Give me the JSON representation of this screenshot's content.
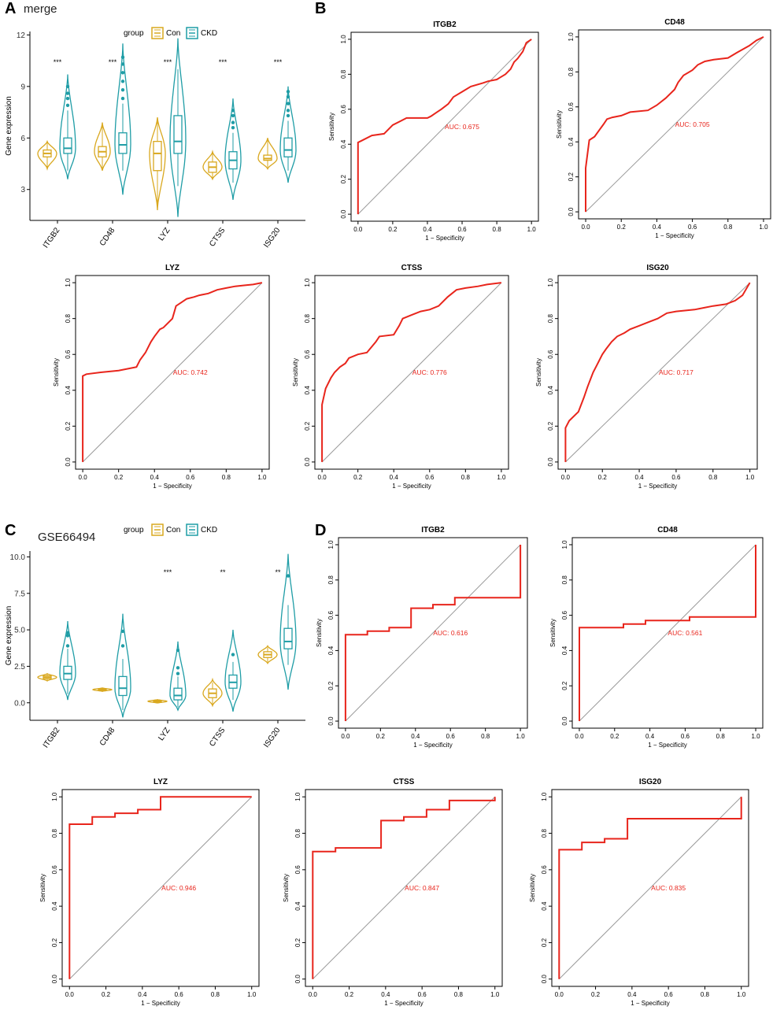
{
  "colors": {
    "con": "#d9a81f",
    "ckd": "#1f9da6",
    "roc_line": "#e8251c",
    "diagonal": "#9a9a9a",
    "auc_text": "#e8251c"
  },
  "chart_data": [
    {
      "panel": "A",
      "type": "violin",
      "title": "merge",
      "xlabel": "",
      "ylabel": "Gene expression",
      "ylim": [
        1.2,
        12.2
      ],
      "yticks": [
        3,
        6,
        9,
        12
      ],
      "yticklabels": [
        "3",
        "6",
        "9",
        "12"
      ],
      "categories": [
        "ITGB2",
        "CD48",
        "LYZ",
        "CTSS",
        "ISG20"
      ],
      "legend": {
        "title": "group",
        "entries": [
          "Con",
          "CKD"
        ]
      },
      "significance": [
        "***",
        "***",
        "***",
        "***",
        "***"
      ],
      "series": [
        {
          "name": "Con",
          "groups": [
            {
              "median": 5.1,
              "q1": 4.9,
              "q3": 5.3,
              "min": 4.2,
              "max": 5.8,
              "violin": [
                4.2,
                5.8
              ],
              "outliers": []
            },
            {
              "median": 5.2,
              "q1": 4.9,
              "q3": 5.5,
              "min": 4.2,
              "max": 6.9,
              "violin": [
                4.1,
                6.9
              ],
              "outliers": []
            },
            {
              "median": 5.1,
              "q1": 4.1,
              "q3": 5.8,
              "min": 1.8,
              "max": 7.2,
              "violin": [
                1.8,
                7.2
              ],
              "outliers": []
            },
            {
              "median": 4.3,
              "q1": 4.0,
              "q3": 4.6,
              "min": 3.6,
              "max": 5.2,
              "violin": [
                3.6,
                5.2
              ],
              "outliers": []
            },
            {
              "median": 4.8,
              "q1": 4.7,
              "q3": 5.0,
              "min": 4.3,
              "max": 6.0,
              "violin": [
                4.2,
                6.0
              ],
              "outliers": []
            }
          ]
        },
        {
          "name": "CKD",
          "groups": [
            {
              "median": 5.4,
              "q1": 5.1,
              "q3": 6.0,
              "min": 4.1,
              "max": 7.6,
              "violin": [
                3.6,
                9.7
              ],
              "outliers": [
                7.9,
                8.3,
                8.6,
                9.0
              ]
            },
            {
              "median": 5.6,
              "q1": 5.1,
              "q3": 6.3,
              "min": 4.1,
              "max": 8.0,
              "violin": [
                2.7,
                11.5
              ],
              "outliers": [
                8.3,
                8.8,
                9.3,
                9.8,
                10.3,
                10.7
              ]
            },
            {
              "median": 5.8,
              "q1": 5.1,
              "q3": 7.3,
              "min": 3.2,
              "max": 10.0,
              "violin": [
                1.4,
                11.8
              ],
              "outliers": []
            },
            {
              "median": 4.7,
              "q1": 4.2,
              "q3": 5.2,
              "min": 3.4,
              "max": 6.3,
              "violin": [
                2.4,
                8.3
              ],
              "outliers": [
                6.6,
                6.9,
                7.3,
                7.6
              ]
            },
            {
              "median": 5.3,
              "q1": 4.9,
              "q3": 6.0,
              "min": 4.1,
              "max": 7.0,
              "violin": [
                3.4,
                9.0
              ],
              "outliers": [
                7.3,
                7.6,
                8.0,
                8.4,
                8.7
              ]
            }
          ]
        }
      ]
    },
    {
      "panel": "C",
      "type": "violin",
      "title": "GSE66494",
      "xlabel": "",
      "ylabel": "Gene expression",
      "ylim": [
        -1.2,
        10.4
      ],
      "yticks": [
        0,
        2.5,
        5,
        7.5,
        10
      ],
      "yticklabels": [
        "0.0",
        "2.5",
        "5.0",
        "7.5",
        "10.0"
      ],
      "categories": [
        "ITGB2",
        "CD48",
        "LYZ",
        "CTSS",
        "ISG20"
      ],
      "legend": {
        "title": "group",
        "entries": [
          "Con",
          "CKD"
        ]
      },
      "significance": [
        "",
        "",
        "***",
        "**",
        "**"
      ],
      "series": [
        {
          "name": "Con",
          "groups": [
            {
              "median": 1.75,
              "q1": 1.65,
              "q3": 1.85,
              "min": 1.5,
              "max": 2.0,
              "violin": [
                1.5,
                2.0
              ],
              "outliers": []
            },
            {
              "median": 0.9,
              "q1": 0.85,
              "q3": 0.95,
              "min": 0.8,
              "max": 1.0,
              "violin": [
                0.78,
                1.02
              ],
              "outliers": []
            },
            {
              "median": 0.1,
              "q1": 0.05,
              "q3": 0.15,
              "min": 0.0,
              "max": 0.2,
              "violin": [
                -0.02,
                0.22
              ],
              "outliers": []
            },
            {
              "median": 0.65,
              "q1": 0.35,
              "q3": 0.95,
              "min": -0.1,
              "max": 1.4,
              "violin": [
                -0.2,
                1.6
              ],
              "outliers": []
            },
            {
              "median": 3.3,
              "q1": 3.1,
              "q3": 3.5,
              "min": 2.8,
              "max": 3.8,
              "violin": [
                2.7,
                3.9
              ],
              "outliers": []
            }
          ]
        },
        {
          "name": "CKD",
          "groups": [
            {
              "median": 2.0,
              "q1": 1.6,
              "q3": 2.5,
              "min": 0.6,
              "max": 3.7,
              "violin": [
                0.2,
                5.6
              ],
              "outliers": [
                4.6,
                4.8,
                3.9
              ]
            },
            {
              "median": 1.0,
              "q1": 0.5,
              "q3": 1.8,
              "min": -0.5,
              "max": 3.0,
              "violin": [
                -1.0,
                6.1
              ],
              "outliers": [
                3.9,
                4.9
              ]
            },
            {
              "median": 0.5,
              "q1": 0.2,
              "q3": 1.0,
              "min": -0.3,
              "max": 1.8,
              "violin": [
                -0.5,
                4.2
              ],
              "outliers": [
                2.0,
                2.4,
                3.6
              ]
            },
            {
              "median": 1.4,
              "q1": 1.0,
              "q3": 1.9,
              "min": 0.2,
              "max": 2.8,
              "violin": [
                -0.6,
                5.0
              ],
              "outliers": [
                3.3
              ]
            },
            {
              "median": 4.2,
              "q1": 3.7,
              "q3": 5.1,
              "min": 2.6,
              "max": 6.7,
              "violin": [
                0.9,
                10.2
              ],
              "outliers": [
                8.7
              ]
            }
          ]
        }
      ]
    },
    {
      "panel": "B",
      "type": "line",
      "title": "ITGB2",
      "xlabel": "1 − Specificity",
      "ylabel": "Sensitivity",
      "xlim": [
        0,
        1
      ],
      "ylim": [
        0,
        1
      ],
      "ticks": [
        "0.0",
        "0.2",
        "0.4",
        "0.6",
        "0.8",
        "1.0"
      ],
      "auc_label": "AUC: 0.675",
      "x": [
        0,
        0,
        0.02,
        0.08,
        0.15,
        0.2,
        0.28,
        0.4,
        0.42,
        0.45,
        0.48,
        0.52,
        0.55,
        0.6,
        0.65,
        0.72,
        0.75,
        0.8,
        0.85,
        0.88,
        0.9,
        0.92,
        0.95,
        0.97,
        1.0
      ],
      "y": [
        0,
        0.41,
        0.42,
        0.45,
        0.46,
        0.51,
        0.55,
        0.55,
        0.56,
        0.58,
        0.6,
        0.63,
        0.67,
        0.7,
        0.73,
        0.75,
        0.76,
        0.77,
        0.8,
        0.83,
        0.87,
        0.89,
        0.93,
        0.98,
        1.0
      ]
    },
    {
      "panel": "B",
      "type": "line",
      "title": "CD48",
      "xlabel": "1 − Specificity",
      "ylabel": "Sensitivity",
      "xlim": [
        0,
        1
      ],
      "ylim": [
        0,
        1
      ],
      "ticks": [
        "0.0",
        "0.2",
        "0.4",
        "0.6",
        "0.8",
        "1.0"
      ],
      "auc_label": "AUC: 0.705",
      "x": [
        0,
        0,
        0.02,
        0.05,
        0.1,
        0.12,
        0.15,
        0.2,
        0.25,
        0.35,
        0.4,
        0.45,
        0.5,
        0.52,
        0.55,
        0.6,
        0.63,
        0.67,
        0.72,
        0.8,
        0.85,
        0.92,
        0.96,
        1.0
      ],
      "y": [
        0,
        0.25,
        0.41,
        0.43,
        0.5,
        0.53,
        0.54,
        0.55,
        0.57,
        0.58,
        0.61,
        0.65,
        0.7,
        0.74,
        0.78,
        0.81,
        0.84,
        0.86,
        0.87,
        0.88,
        0.91,
        0.95,
        0.98,
        1.0
      ]
    },
    {
      "panel": "B",
      "type": "line",
      "title": "LYZ",
      "xlabel": "1 − Specificity",
      "ylabel": "Sensitivity",
      "xlim": [
        0,
        1
      ],
      "ylim": [
        0,
        1
      ],
      "ticks": [
        "0.0",
        "0.2",
        "0.4",
        "0.6",
        "0.8",
        "1.0"
      ],
      "auc_label": "AUC: 0.742",
      "x": [
        0,
        0,
        0.02,
        0.1,
        0.2,
        0.3,
        0.32,
        0.35,
        0.38,
        0.4,
        0.43,
        0.45,
        0.5,
        0.52,
        0.55,
        0.58,
        0.62,
        0.65,
        0.7,
        0.75,
        0.8,
        0.85,
        0.9,
        0.95,
        1.0
      ],
      "y": [
        0,
        0.48,
        0.49,
        0.5,
        0.51,
        0.53,
        0.57,
        0.61,
        0.67,
        0.7,
        0.74,
        0.75,
        0.8,
        0.87,
        0.89,
        0.91,
        0.92,
        0.93,
        0.94,
        0.96,
        0.97,
        0.98,
        0.985,
        0.99,
        1.0
      ]
    },
    {
      "panel": "B",
      "type": "line",
      "title": "CTSS",
      "xlabel": "1 − Specificity",
      "ylabel": "Sensitivity",
      "xlim": [
        0,
        1
      ],
      "ylim": [
        0,
        1
      ],
      "ticks": [
        "0.0",
        "0.2",
        "0.4",
        "0.6",
        "0.8",
        "1.0"
      ],
      "auc_label": "AUC: 0.776",
      "x": [
        0,
        0,
        0.02,
        0.05,
        0.07,
        0.1,
        0.13,
        0.15,
        0.2,
        0.25,
        0.3,
        0.32,
        0.4,
        0.43,
        0.45,
        0.5,
        0.55,
        0.6,
        0.65,
        0.7,
        0.75,
        0.8,
        0.87,
        0.92,
        1.0
      ],
      "y": [
        0,
        0.32,
        0.41,
        0.47,
        0.5,
        0.53,
        0.55,
        0.58,
        0.6,
        0.61,
        0.67,
        0.7,
        0.71,
        0.76,
        0.8,
        0.82,
        0.84,
        0.85,
        0.87,
        0.92,
        0.96,
        0.97,
        0.98,
        0.99,
        1.0
      ]
    },
    {
      "panel": "B",
      "type": "line",
      "title": "ISG20",
      "xlabel": "1 − Specificity",
      "ylabel": "Sensitivity",
      "xlim": [
        0,
        1
      ],
      "ylim": [
        0,
        1
      ],
      "ticks": [
        "0.0",
        "0.2",
        "0.4",
        "0.6",
        "0.8",
        "1.0"
      ],
      "auc_label": "AUC: 0.717",
      "x": [
        0,
        0,
        0.02,
        0.07,
        0.1,
        0.12,
        0.15,
        0.17,
        0.2,
        0.22,
        0.25,
        0.28,
        0.32,
        0.35,
        0.4,
        0.45,
        0.5,
        0.55,
        0.6,
        0.7,
        0.75,
        0.8,
        0.87,
        0.92,
        0.96,
        1.0
      ],
      "y": [
        0,
        0.19,
        0.23,
        0.28,
        0.36,
        0.42,
        0.5,
        0.54,
        0.6,
        0.63,
        0.67,
        0.7,
        0.72,
        0.74,
        0.76,
        0.78,
        0.8,
        0.83,
        0.84,
        0.85,
        0.86,
        0.87,
        0.88,
        0.9,
        0.93,
        1.0
      ]
    },
    {
      "panel": "D",
      "type": "line",
      "title": "ITGB2",
      "xlabel": "1 − Specificity",
      "ylabel": "Sensitivity",
      "xlim": [
        0,
        1
      ],
      "ylim": [
        0,
        1
      ],
      "ticks": [
        "0.0",
        "0.2",
        "0.4",
        "0.6",
        "0.8",
        "1.0"
      ],
      "auc_label": "AUC: 0.616",
      "x": [
        0,
        0,
        0.125,
        0.125,
        0.25,
        0.25,
        0.375,
        0.375,
        0.5,
        0.5,
        0.625,
        0.625,
        1.0,
        1.0
      ],
      "y": [
        0,
        0.49,
        0.49,
        0.51,
        0.51,
        0.53,
        0.53,
        0.64,
        0.64,
        0.66,
        0.66,
        0.7,
        0.7,
        1.0
      ]
    },
    {
      "panel": "D",
      "type": "line",
      "title": "CD48",
      "xlabel": "1 − Specificity",
      "ylabel": "Sensitivity",
      "xlim": [
        0,
        1
      ],
      "ylim": [
        0,
        1
      ],
      "ticks": [
        "0.0",
        "0.2",
        "0.4",
        "0.6",
        "0.8",
        "1.0"
      ],
      "auc_label": "AUC: 0.561",
      "x": [
        0,
        0,
        0.25,
        0.25,
        0.375,
        0.375,
        0.625,
        0.625,
        1.0,
        1.0
      ],
      "y": [
        0,
        0.53,
        0.53,
        0.55,
        0.55,
        0.57,
        0.57,
        0.59,
        0.59,
        1.0
      ]
    },
    {
      "panel": "D",
      "type": "line",
      "title": "LYZ",
      "xlabel": "1 − Specificity",
      "ylabel": "Sensitivity",
      "xlim": [
        0,
        1
      ],
      "ylim": [
        0,
        1
      ],
      "ticks": [
        "0.0",
        "0.2",
        "0.4",
        "0.6",
        "0.8",
        "1.0"
      ],
      "auc_label": "AUC: 0.946",
      "x": [
        0,
        0,
        0.125,
        0.125,
        0.25,
        0.25,
        0.375,
        0.375,
        0.5,
        0.5,
        1.0
      ],
      "y": [
        0,
        0.85,
        0.85,
        0.89,
        0.89,
        0.91,
        0.91,
        0.93,
        0.93,
        1.0,
        1.0
      ]
    },
    {
      "panel": "D",
      "type": "line",
      "title": "CTSS",
      "xlabel": "1 − Specificity",
      "ylabel": "Sensitivity",
      "xlim": [
        0,
        1
      ],
      "ylim": [
        0,
        1
      ],
      "ticks": [
        "0.0",
        "0.2",
        "0.4",
        "0.6",
        "0.8",
        "1.0"
      ],
      "auc_label": "AUC: 0.847",
      "x": [
        0,
        0,
        0.125,
        0.125,
        0.375,
        0.375,
        0.5,
        0.5,
        0.625,
        0.625,
        0.75,
        0.75,
        1.0,
        1.0
      ],
      "y": [
        0,
        0.7,
        0.7,
        0.72,
        0.72,
        0.87,
        0.87,
        0.89,
        0.89,
        0.93,
        0.93,
        0.98,
        0.98,
        1.0
      ]
    },
    {
      "panel": "D",
      "type": "line",
      "title": "ISG20",
      "xlabel": "1 − Specificity",
      "ylabel": "Sensitivity",
      "xlim": [
        0,
        1
      ],
      "ylim": [
        0,
        1
      ],
      "ticks": [
        "0.0",
        "0.2",
        "0.4",
        "0.6",
        "0.8",
        "1.0"
      ],
      "auc_label": "AUC: 0.835",
      "x": [
        0,
        0,
        0.125,
        0.125,
        0.25,
        0.25,
        0.375,
        0.375,
        1.0,
        1.0
      ],
      "y": [
        0,
        0.71,
        0.71,
        0.75,
        0.75,
        0.77,
        0.77,
        0.88,
        0.88,
        1.0
      ]
    }
  ],
  "panel_letters": [
    "A",
    "B",
    "C",
    "D"
  ]
}
